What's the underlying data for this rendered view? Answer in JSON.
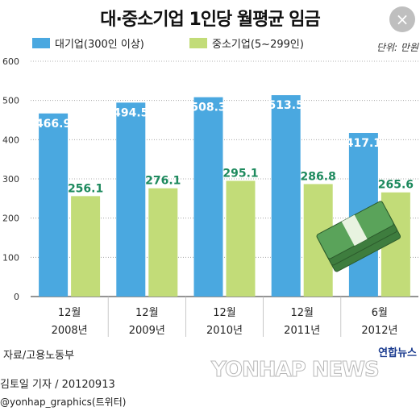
{
  "title": "대·중소기업 1인당 월평균 임금",
  "unit": "단위: 만원",
  "source": "자료/고용노동부",
  "logo_text": "연합뉴스",
  "credit": "김토일 기자 / 20120913",
  "twitter": "@yonhap_graphics(트위터)",
  "watermark": "YONHAP NEWS",
  "close_icon": "×",
  "colors": {
    "large": "#4aa8e0",
    "small": "#c2dc78",
    "large_label": "#ffffff",
    "small_label": "#1e8a5e",
    "grid": "#999999"
  },
  "chart_data": {
    "type": "bar",
    "categories": [
      [
        "12월",
        "2008년"
      ],
      [
        "12월",
        "2009년"
      ],
      [
        "12월",
        "2010년"
      ],
      [
        "12월",
        "2011년"
      ],
      [
        "6월",
        "2012년"
      ]
    ],
    "series": [
      {
        "name": "대기업(300인 이상)",
        "values": [
          466.9,
          494.5,
          508.3,
          513.5,
          417.1
        ]
      },
      {
        "name": "중소기업(5~299인)",
        "values": [
          256.1,
          276.1,
          295.1,
          286.8,
          265.6
        ]
      }
    ],
    "data_labels": [
      [
        "466.9",
        "494.5",
        "508.3",
        "513.5",
        "417.1"
      ],
      [
        "256.1",
        "276.1",
        "295.1",
        "286.8",
        "265.6"
      ]
    ],
    "yticks": [
      0,
      100,
      200,
      300,
      400,
      500,
      600
    ],
    "ylim": [
      0,
      600
    ],
    "legend_position": "top-left",
    "grid": true
  }
}
